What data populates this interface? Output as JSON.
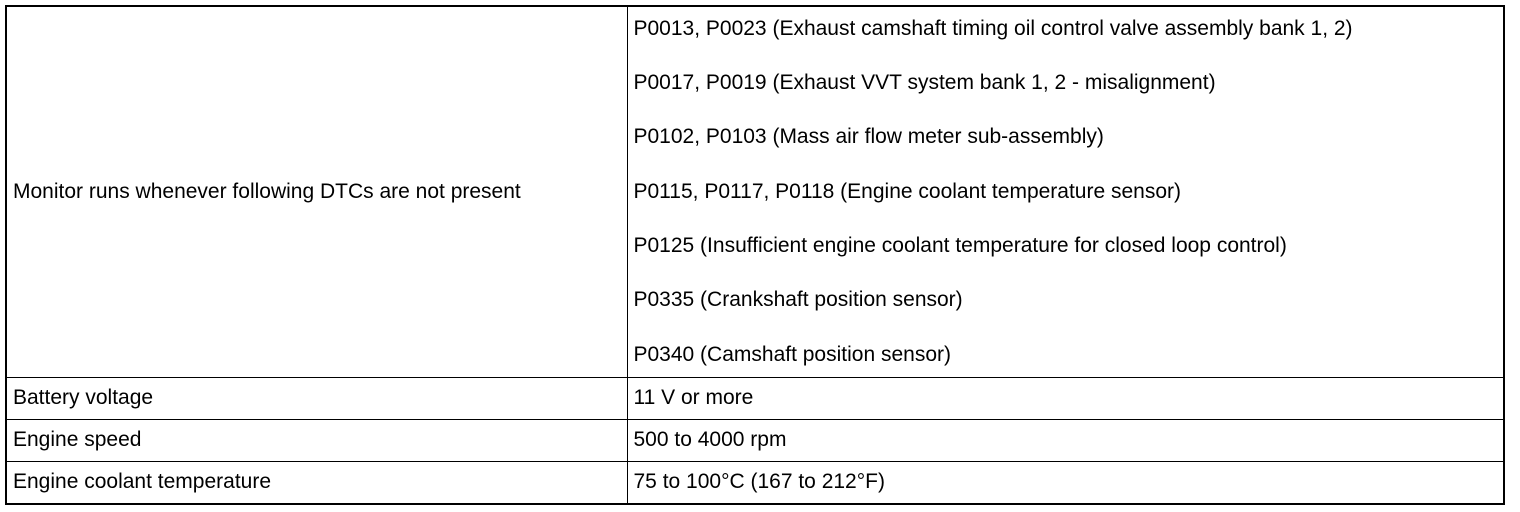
{
  "table": {
    "dtc_row": {
      "label": "Monitor runs whenever following DTCs are not present",
      "items": [
        "P0013, P0023 (Exhaust camshaft timing oil control valve assembly bank 1, 2)",
        "P0017, P0019 (Exhaust VVT system bank 1, 2 - misalignment)",
        "P0102, P0103 (Mass air flow meter sub-assembly)",
        "P0115, P0117, P0118 (Engine coolant temperature sensor)",
        "P0125 (Insufficient engine coolant temperature for closed loop control)",
        "P0335 (Crankshaft position sensor)",
        "P0340 (Camshaft position sensor)"
      ]
    },
    "rows": [
      {
        "label": "Battery voltage",
        "value": "11 V or more"
      },
      {
        "label": "Engine speed",
        "value": "500 to 4000 rpm"
      },
      {
        "label": "Engine coolant temperature",
        "value": "75 to 100°C (167 to 212°F)"
      }
    ]
  }
}
